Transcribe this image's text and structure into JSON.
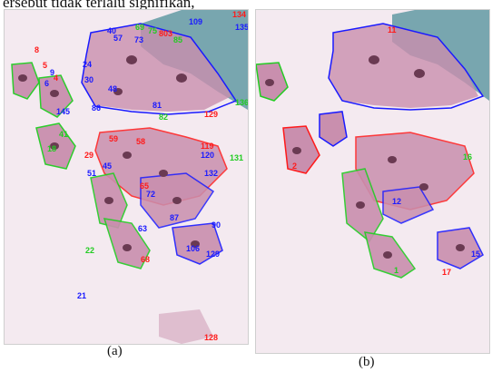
{
  "caption": {
    "top_text": "ersebut tidak terlalu signifikan,",
    "label_a": "(a)",
    "label_b": "(b)"
  },
  "colors": {
    "background_tissue": "#f4eaf0",
    "cell_fill": "#c98fae",
    "nucleus": "#6a3a52",
    "blue_stain": "#4f8f9a",
    "outline_red": "#ff1a1a",
    "outline_green": "#22cc22",
    "outline_blue": "#1a1aff"
  },
  "panel_a": {
    "labels": [
      {
        "text": "8",
        "color": "red"
      },
      {
        "text": "5",
        "color": "red"
      },
      {
        "text": "9",
        "color": "blue"
      },
      {
        "text": "4",
        "color": "red"
      },
      {
        "text": "6",
        "color": "blue"
      },
      {
        "text": "40",
        "color": "blue"
      },
      {
        "text": "57",
        "color": "blue"
      },
      {
        "text": "69",
        "color": "green"
      },
      {
        "text": "75",
        "color": "green"
      },
      {
        "text": "803",
        "color": "red"
      },
      {
        "text": "73",
        "color": "blue"
      },
      {
        "text": "85",
        "color": "green"
      },
      {
        "text": "109",
        "color": "blue"
      },
      {
        "text": "134",
        "color": "red"
      },
      {
        "text": "135",
        "color": "blue"
      },
      {
        "text": "24",
        "color": "blue"
      },
      {
        "text": "30",
        "color": "blue"
      },
      {
        "text": "48",
        "color": "blue"
      },
      {
        "text": "136",
        "color": "green"
      },
      {
        "text": "145",
        "color": "blue"
      },
      {
        "text": "86",
        "color": "blue"
      },
      {
        "text": "81",
        "color": "blue"
      },
      {
        "text": "82",
        "color": "green"
      },
      {
        "text": "129",
        "color": "red"
      },
      {
        "text": "41",
        "color": "green"
      },
      {
        "text": "18",
        "color": "green"
      },
      {
        "text": "29",
        "color": "red"
      },
      {
        "text": "59",
        "color": "red"
      },
      {
        "text": "45",
        "color": "blue"
      },
      {
        "text": "51",
        "color": "blue"
      },
      {
        "text": "58",
        "color": "red"
      },
      {
        "text": "72",
        "color": "blue"
      },
      {
        "text": "65",
        "color": "red"
      },
      {
        "text": "119",
        "color": "red"
      },
      {
        "text": "120",
        "color": "blue"
      },
      {
        "text": "131",
        "color": "green"
      },
      {
        "text": "132",
        "color": "blue"
      },
      {
        "text": "87",
        "color": "blue"
      },
      {
        "text": "63",
        "color": "blue"
      },
      {
        "text": "90",
        "color": "blue"
      },
      {
        "text": "22",
        "color": "green"
      },
      {
        "text": "106",
        "color": "blue"
      },
      {
        "text": "129",
        "color": "blue"
      },
      {
        "text": "68",
        "color": "red"
      },
      {
        "text": "21",
        "color": "blue"
      },
      {
        "text": "128",
        "color": "red"
      }
    ]
  },
  "panel_b": {
    "labels": [
      {
        "text": "11",
        "color": "red"
      },
      {
        "text": "2",
        "color": "red"
      },
      {
        "text": "17",
        "color": "red"
      },
      {
        "text": "12",
        "color": "blue"
      },
      {
        "text": "15",
        "color": "blue"
      },
      {
        "text": "16",
        "color": "green"
      },
      {
        "text": "1",
        "color": "green"
      }
    ]
  }
}
